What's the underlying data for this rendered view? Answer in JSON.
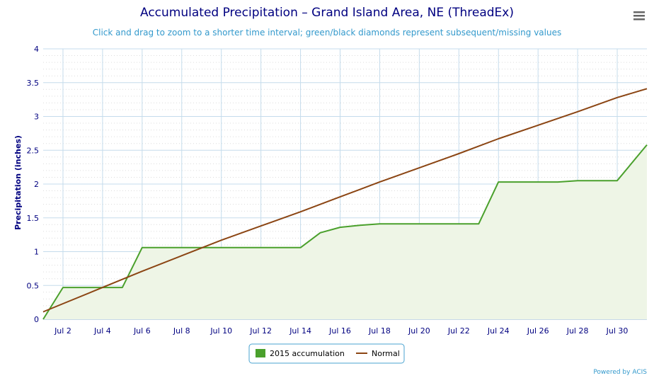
{
  "chart_data": {
    "type": "area",
    "title": "Accumulated Precipitation – Grand Island Area, NE (ThreadEx)",
    "subtitle": "Click and drag to zoom to a shorter time interval; green/black diamonds represent subsequent/missing values",
    "ylabel": "Precipitation (inches)",
    "xlabel": "",
    "ylim": [
      0,
      4
    ],
    "xlim": [
      1,
      31.5
    ],
    "y_ticks": [
      "0",
      "0.5",
      "1",
      "1.5",
      "2",
      "2.5",
      "3",
      "3.5",
      "4"
    ],
    "x_ticks": [
      {
        "x": 2,
        "label": "Jul 2"
      },
      {
        "x": 4,
        "label": "Jul 4"
      },
      {
        "x": 6,
        "label": "Jul 6"
      },
      {
        "x": 8,
        "label": "Jul 8"
      },
      {
        "x": 10,
        "label": "Jul 10"
      },
      {
        "x": 12,
        "label": "Jul 12"
      },
      {
        "x": 14,
        "label": "Jul 14"
      },
      {
        "x": 16,
        "label": "Jul 16"
      },
      {
        "x": 18,
        "label": "Jul 18"
      },
      {
        "x": 20,
        "label": "Jul 20"
      },
      {
        "x": 22,
        "label": "Jul 22"
      },
      {
        "x": 24,
        "label": "Jul 24"
      },
      {
        "x": 26,
        "label": "Jul 26"
      },
      {
        "x": 28,
        "label": "Jul 28"
      },
      {
        "x": 30,
        "label": "Jul 30"
      }
    ],
    "grid": true,
    "legend_position": "bottom-center",
    "series": [
      {
        "name": "2015 accumulation",
        "kind": "area",
        "color": "#4aa02c",
        "fill": "#eef5e6",
        "points": [
          [
            1,
            0
          ],
          [
            2,
            0.47
          ],
          [
            3,
            0.47
          ],
          [
            4,
            0.47
          ],
          [
            5,
            0.47
          ],
          [
            6,
            1.06
          ],
          [
            7,
            1.06
          ],
          [
            8,
            1.06
          ],
          [
            9,
            1.06
          ],
          [
            10,
            1.06
          ],
          [
            11,
            1.06
          ],
          [
            12,
            1.06
          ],
          [
            13,
            1.06
          ],
          [
            14,
            1.06
          ],
          [
            15,
            1.28
          ],
          [
            16,
            1.36
          ],
          [
            17,
            1.39
          ],
          [
            18,
            1.41
          ],
          [
            19,
            1.41
          ],
          [
            20,
            1.41
          ],
          [
            21,
            1.41
          ],
          [
            22,
            1.41
          ],
          [
            23,
            1.41
          ],
          [
            24,
            2.03
          ],
          [
            25,
            2.03
          ],
          [
            26,
            2.03
          ],
          [
            27,
            2.03
          ],
          [
            28,
            2.05
          ],
          [
            29,
            2.05
          ],
          [
            30,
            2.05
          ],
          [
            31.5,
            2.58
          ]
        ]
      },
      {
        "name": "Normal",
        "kind": "line",
        "color": "#8b4513",
        "points": [
          [
            1,
            0.11
          ],
          [
            2,
            0.23
          ],
          [
            4,
            0.47
          ],
          [
            6,
            0.71
          ],
          [
            8,
            0.94
          ],
          [
            10,
            1.17
          ],
          [
            12,
            1.38
          ],
          [
            14,
            1.59
          ],
          [
            16,
            1.81
          ],
          [
            18,
            2.03
          ],
          [
            20,
            2.24
          ],
          [
            22,
            2.45
          ],
          [
            24,
            2.67
          ],
          [
            26,
            2.87
          ],
          [
            28,
            3.07
          ],
          [
            30,
            3.28
          ],
          [
            31.5,
            3.41
          ]
        ]
      }
    ]
  },
  "credit": "Powered by ACIS",
  "menu_icon": "hamburger-menu-icon"
}
